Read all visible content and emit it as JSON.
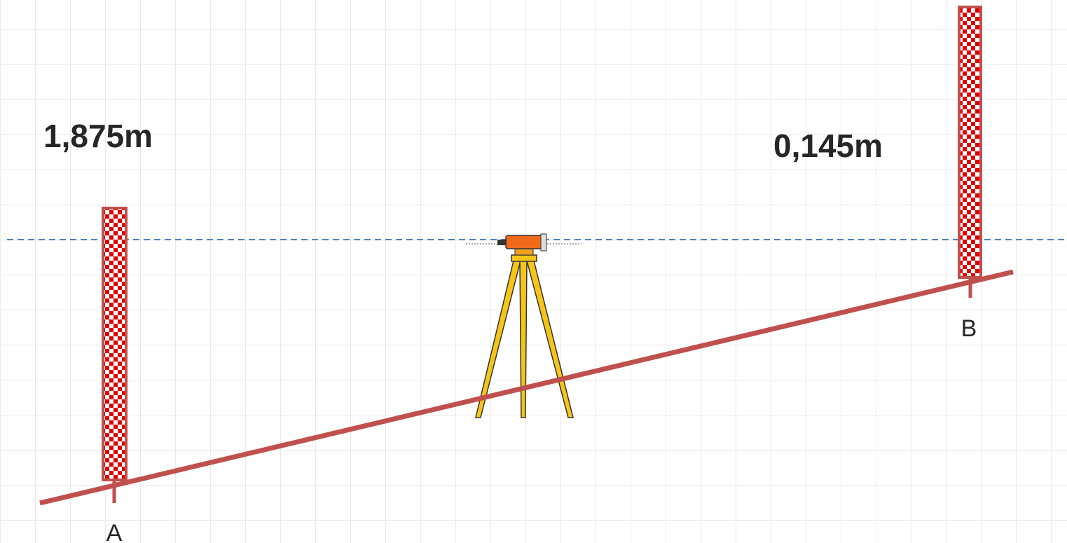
{
  "readings": {
    "a": "1,875m",
    "b": "0,145m"
  },
  "points": {
    "a": "A",
    "b": "B"
  }
}
